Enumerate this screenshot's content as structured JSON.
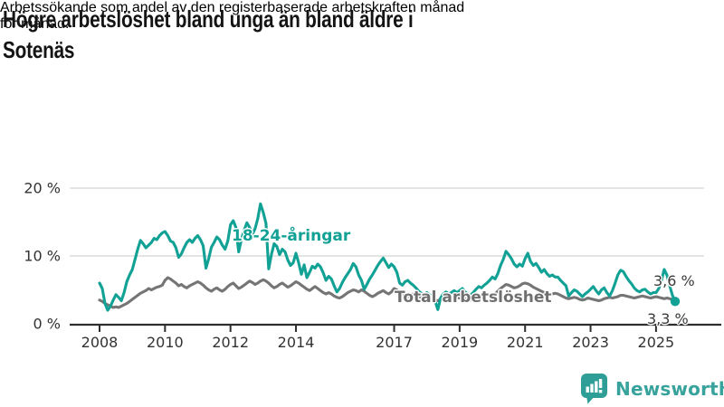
{
  "header": {
    "title": "Högre arbetslöshet bland unga än bland äldre i Sotenäs",
    "title_lines": [
      "Högre arbetslöshet bland unga än bland äldre i",
      "Sotenäs"
    ],
    "subtitle": "Arbetssökande som andel av den registerbaserade arbetskraften månad för månad.",
    "subtitle_lines": [
      "Arbetssökande som andel av den registerbaserade arbetskraften månad",
      "för månad."
    ]
  },
  "footer": {
    "brand": "Newsworthy",
    "logo_icon": "bar-chart-speech-bubble-icon"
  },
  "colors": {
    "accent_teal": "#12a195",
    "series_gray": "#757575",
    "grid": "#dcdcdc",
    "axis": "#2e2e2e",
    "tick_text": "#333333",
    "logo_teal": "#38a39c"
  },
  "chart_data": {
    "type": "line",
    "title": "Högre arbetslöshet bland unga än bland äldre i Sotenäs",
    "subtitle": "Arbetssökande som andel av den registerbaserade arbetskraften månad för månad.",
    "x_unit": "month",
    "x_range": [
      "2008-01",
      "2025-08"
    ],
    "x_tick_labels": [
      "2008",
      "2010",
      "2012",
      "2014",
      "2017",
      "2019",
      "2021",
      "2023",
      "2025"
    ],
    "y_tick_labels": [
      "0 %",
      "10 %",
      "20 %"
    ],
    "y_tick_values": [
      0,
      10,
      20
    ],
    "ylim": [
      0,
      20
    ],
    "grid": "horizontal",
    "legend_position": "inline-labels",
    "annotations": {
      "series_label_youth": "18-24-åringar",
      "series_label_total": "Total arbetslöshet",
      "end_label_total": "3,6 %",
      "end_label_youth": "3,3 %"
    },
    "series": [
      {
        "name": "18-24-åringar",
        "color": "#12a195",
        "end_value": 3.3,
        "end_value_label": "3,3 %",
        "end_dot": true,
        "values": [
          6.0,
          5.2,
          3.0,
          2.0,
          2.6,
          3.5,
          4.3,
          3.9,
          3.4,
          4.6,
          6.2,
          7.2,
          8.0,
          9.5,
          11.0,
          12.3,
          11.8,
          11.2,
          11.6,
          12.0,
          12.6,
          12.4,
          13.0,
          13.4,
          13.6,
          13.0,
          12.2,
          12.0,
          11.2,
          9.8,
          10.3,
          11.2,
          12.0,
          12.4,
          12.0,
          12.6,
          13.0,
          12.4,
          11.5,
          8.2,
          9.6,
          11.3,
          12.0,
          12.8,
          12.4,
          11.6,
          11.0,
          12.2,
          14.6,
          15.2,
          14.2,
          10.6,
          12.4,
          13.8,
          14.9,
          14.2,
          13.2,
          14.0,
          15.5,
          17.7,
          16.4,
          14.8,
          8.1,
          10.2,
          11.8,
          11.4,
          10.2,
          11.0,
          10.6,
          9.4,
          8.6,
          9.0,
          10.4,
          9.0,
          7.3,
          8.7,
          6.8,
          7.6,
          8.5,
          8.2,
          8.8,
          8.4,
          7.5,
          6.4,
          7.0,
          6.6,
          5.6,
          4.7,
          5.2,
          6.1,
          6.8,
          7.4,
          8.0,
          8.9,
          8.4,
          7.2,
          6.4,
          5.1,
          5.8,
          6.6,
          7.2,
          7.9,
          8.6,
          9.2,
          9.7,
          9.0,
          8.3,
          8.8,
          8.4,
          7.6,
          6.0,
          5.7,
          6.2,
          6.4,
          6.0,
          5.7,
          5.3,
          4.8,
          4.5,
          4.3,
          4.6,
          4.3,
          3.9,
          3.4,
          2.1,
          3.8,
          4.4,
          4.7,
          4.4,
          4.6,
          4.9,
          4.6,
          4.9,
          5.2,
          4.7,
          4.4,
          4.2,
          4.6,
          5.1,
          5.5,
          5.3,
          5.7,
          6.0,
          6.4,
          6.9,
          6.6,
          7.4,
          8.6,
          9.5,
          10.7,
          10.2,
          9.6,
          8.8,
          8.4,
          8.8,
          8.5,
          9.6,
          10.4,
          9.2,
          8.6,
          8.9,
          8.3,
          7.6,
          8.0,
          7.4,
          7.0,
          7.2,
          6.9,
          6.9,
          6.4,
          6.0,
          5.6,
          4.1,
          4.6,
          5.0,
          4.8,
          4.4,
          4.0,
          4.4,
          4.7,
          5.1,
          5.5,
          4.9,
          4.4,
          5.0,
          5.3,
          4.6,
          4.1,
          4.9,
          6.0,
          7.2,
          7.9,
          7.7,
          7.0,
          6.4,
          5.9,
          5.3,
          4.9,
          4.7,
          5.0,
          5.1,
          4.7,
          4.4,
          4.6,
          4.6,
          5.2,
          6.4,
          8.0,
          7.2,
          5.6,
          4.2,
          3.3
        ]
      },
      {
        "name": "Total arbetslöshet",
        "color": "#757575",
        "end_value": 3.6,
        "end_value_label": "3,6 %",
        "end_dot": false,
        "values": [
          3.5,
          3.3,
          3.0,
          2.8,
          2.6,
          2.4,
          2.5,
          2.4,
          2.6,
          2.8,
          3.0,
          3.3,
          3.6,
          3.9,
          4.2,
          4.5,
          4.7,
          4.9,
          5.2,
          5.0,
          5.2,
          5.4,
          5.5,
          5.7,
          6.4,
          6.8,
          6.6,
          6.3,
          6.0,
          5.6,
          5.8,
          5.5,
          5.3,
          5.6,
          5.8,
          6.0,
          6.2,
          6.0,
          5.7,
          5.3,
          5.0,
          4.8,
          5.1,
          5.3,
          5.0,
          4.8,
          5.1,
          5.5,
          5.8,
          6.0,
          5.6,
          5.2,
          5.4,
          5.7,
          6.0,
          6.3,
          6.1,
          5.8,
          6.0,
          6.3,
          6.5,
          6.3,
          6.0,
          5.6,
          5.3,
          5.5,
          5.8,
          6.0,
          5.7,
          5.4,
          5.6,
          5.9,
          6.2,
          6.0,
          5.7,
          5.4,
          5.1,
          4.9,
          5.2,
          5.5,
          5.2,
          4.9,
          4.6,
          4.4,
          4.6,
          4.4,
          4.1,
          3.9,
          3.8,
          4.0,
          4.3,
          4.6,
          4.8,
          5.0,
          4.9,
          4.7,
          5.0,
          4.8,
          4.5,
          4.2,
          4.0,
          4.2,
          4.5,
          4.7,
          4.9,
          4.6,
          4.4,
          4.7,
          5.2,
          5.0,
          4.7,
          4.4,
          4.2,
          4.0,
          4.2,
          4.4,
          4.2,
          4.0,
          3.9,
          4.1,
          4.0,
          3.9,
          3.7,
          3.5,
          3.4,
          3.6,
          3.8,
          3.9,
          3.7,
          3.6,
          3.7,
          3.9,
          3.8,
          3.9,
          3.7,
          3.6,
          3.5,
          3.7,
          3.9,
          4.0,
          3.9,
          4.0,
          4.2,
          4.3,
          4.3,
          4.4,
          4.8,
          5.2,
          5.5,
          5.8,
          5.7,
          5.5,
          5.3,
          5.4,
          5.6,
          5.9,
          6.0,
          5.9,
          5.7,
          5.4,
          5.2,
          5.0,
          4.8,
          4.6,
          4.4,
          4.3,
          4.4,
          4.5,
          4.4,
          4.2,
          4.0,
          3.8,
          3.7,
          3.8,
          3.9,
          3.8,
          3.6,
          3.5,
          3.6,
          3.8,
          3.7,
          3.6,
          3.5,
          3.4,
          3.5,
          3.7,
          3.8,
          3.9,
          3.8,
          3.9,
          4.0,
          4.2,
          4.2,
          4.1,
          4.0,
          3.9,
          3.8,
          3.9,
          4.0,
          4.1,
          4.0,
          3.9,
          3.8,
          3.9,
          4.0,
          3.9,
          3.8,
          3.7,
          3.8,
          3.7,
          3.6,
          3.6
        ]
      }
    ]
  }
}
